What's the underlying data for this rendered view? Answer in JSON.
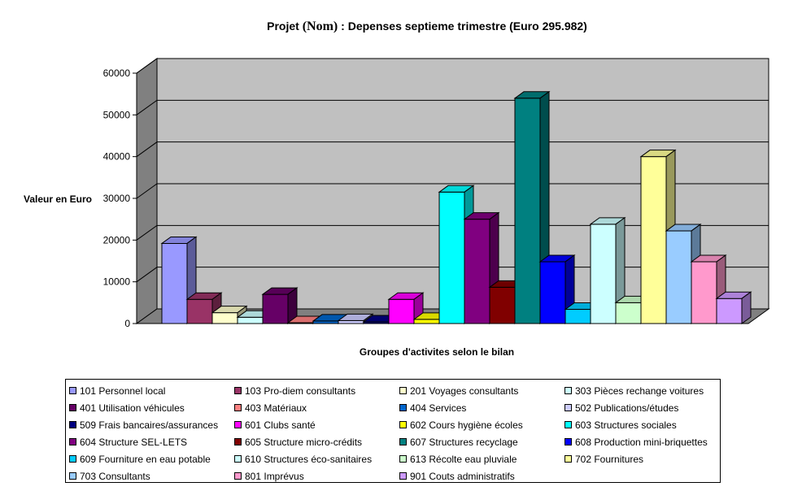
{
  "chart_data": {
    "type": "bar",
    "title": "Projet (Nom) : Depenses septieme trimestre (Euro 295.982)",
    "title_parts": {
      "before": "Projet ",
      "name": "(Nom)",
      "after": " : Depenses septieme trimestre (Euro 295.982)"
    },
    "xlabel": "Groupes d'activites selon le bilan",
    "ylabel": "Valeur en Euro",
    "ylim": [
      0,
      60000
    ],
    "yticks": [
      "0",
      "10000",
      "20000",
      "30000",
      "40000",
      "50000",
      "60000"
    ],
    "grid": true,
    "legend_position": "bottom",
    "categories": [
      "101 Personnel local",
      "103 Pro-diem consultants",
      "201 Voyages consultants",
      "303 Pièces rechange voitures",
      "401 Utilisation véhicules",
      "403 Matériaux",
      "404 Services",
      "502 Publications/études",
      "509 Frais bancaires/assurances",
      "601 Clubs santé",
      "602 Cours hygiène écoles",
      "603 Structures sociales",
      "604 Structure SEL-LETS",
      "605 Structure micro-crédits",
      "607 Structures recyclage",
      "608 Production mini-briquettes",
      "609 Fourniture en eau potable",
      "610 Structures éco-sanitaires",
      "613 Récolte eau pluviale",
      "702 Fournitures",
      "703 Consultants",
      "801 Imprévus",
      "901 Couts administratifs"
    ],
    "values": [
      19200,
      5800,
      2600,
      1500,
      7000,
      200,
      600,
      700,
      400,
      5800,
      1000,
      31500,
      25000,
      8700,
      54000,
      14800,
      3400,
      23800,
      5000,
      40000,
      22200,
      14800,
      6000
    ],
    "colors": [
      "#9999FF",
      "#993366",
      "#FFFFCC",
      "#CCFFFF",
      "#660066",
      "#FF8080",
      "#0066CC",
      "#CCCCFF",
      "#000080",
      "#FF00FF",
      "#FFFF00",
      "#00FFFF",
      "#800080",
      "#800000",
      "#008080",
      "#0000FF",
      "#00CCFF",
      "#CCFFFF",
      "#CCFFCC",
      "#FFFF99",
      "#99CCFF",
      "#FF99CC",
      "#CC99FF"
    ]
  }
}
